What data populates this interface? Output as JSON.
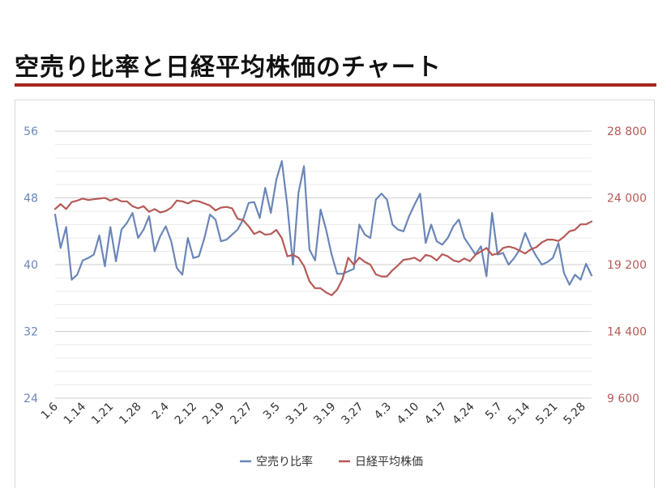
{
  "page": {
    "title": "空売り比率と日経平均株価のチャート"
  },
  "chart_data": {
    "type": "line",
    "y_left": {
      "ticks": [
        "56",
        "48",
        "40",
        "32",
        "24"
      ],
      "range": [
        24,
        56
      ],
      "color": "#6b86b8"
    },
    "y_right": {
      "ticks": [
        "28 800",
        "24 000",
        "19 200",
        "14 400",
        "9 600"
      ],
      "range": [
        9600,
        28800
      ],
      "color": "#b55a57"
    },
    "x_ticks": [
      "1.6",
      "1.14",
      "1.21",
      "1.28",
      "2.4",
      "2.12",
      "2.19",
      "2.27",
      "3.5",
      "3.12",
      "3.19",
      "3.27",
      "4.3",
      "4.10",
      "4.17",
      "4.24",
      "5.7",
      "5.14",
      "5.21",
      "5.28"
    ],
    "grid": true,
    "legend_position": "bottom",
    "series": [
      {
        "name": "空売り比率",
        "axis": "left",
        "color": "#6b86b8",
        "values": [
          46,
          42,
          44.5,
          38.2,
          38.8,
          40.5,
          40.8,
          41.2,
          43.5,
          39.8,
          44.5,
          40.4,
          44.2,
          45,
          46.2,
          43.2,
          44.2,
          45.8,
          41.6,
          43.4,
          44.6,
          42.8,
          39.6,
          38.8,
          43.2,
          40.8,
          41,
          43.2,
          46,
          45.4,
          42.8,
          43,
          43.6,
          44.2,
          45.4,
          47.4,
          47.5,
          45.6,
          49.2,
          46.2,
          50.2,
          52.4,
          47,
          40,
          48.6,
          51.8,
          41.8,
          40.5,
          46.6,
          44.2,
          41.2,
          38.9,
          38.9,
          39.2,
          39.5,
          44.8,
          43.6,
          43.2,
          47.8,
          48.5,
          47.8,
          44.8,
          44.2,
          44,
          45.8,
          47.2,
          48.5,
          42.6,
          44.8,
          42.8,
          42.4,
          43.2,
          44.6,
          45.4,
          43.2,
          42.2,
          41.2,
          42.2,
          38.6,
          46.2,
          41.2,
          41.4,
          40,
          40.8,
          41.8,
          43.8,
          42.2,
          41,
          40,
          40.3,
          40.8,
          42.6,
          39,
          37.6,
          38.8,
          38.2,
          40.1,
          38.7
        ]
      },
      {
        "name": "日経平均株価",
        "axis": "right",
        "color": "#b55a57",
        "values": [
          23200,
          23550,
          23200,
          23700,
          23800,
          23950,
          23850,
          23900,
          23950,
          24000,
          23800,
          23950,
          23750,
          23750,
          23400,
          23250,
          23400,
          23000,
          23200,
          22950,
          23050,
          23300,
          23800,
          23750,
          23600,
          23800,
          23750,
          23600,
          23450,
          23100,
          23300,
          23350,
          23250,
          22500,
          22400,
          21950,
          21400,
          21600,
          21350,
          21400,
          21700,
          21100,
          19800,
          19900,
          19700,
          19100,
          18000,
          17500,
          17500,
          17200,
          17000,
          17400,
          18200,
          19700,
          19200,
          19700,
          19400,
          19200,
          18500,
          18350,
          18350,
          18800,
          19150,
          19550,
          19600,
          19700,
          19450,
          19900,
          19800,
          19500,
          19950,
          19800,
          19500,
          19400,
          19650,
          19450,
          19900,
          20150,
          20400,
          19900,
          20000,
          20400,
          20500,
          20400,
          20200,
          20000,
          20300,
          20450,
          20800,
          21000,
          21000,
          20900,
          21200,
          21600,
          21700,
          22100,
          22100,
          22300
        ]
      }
    ]
  }
}
